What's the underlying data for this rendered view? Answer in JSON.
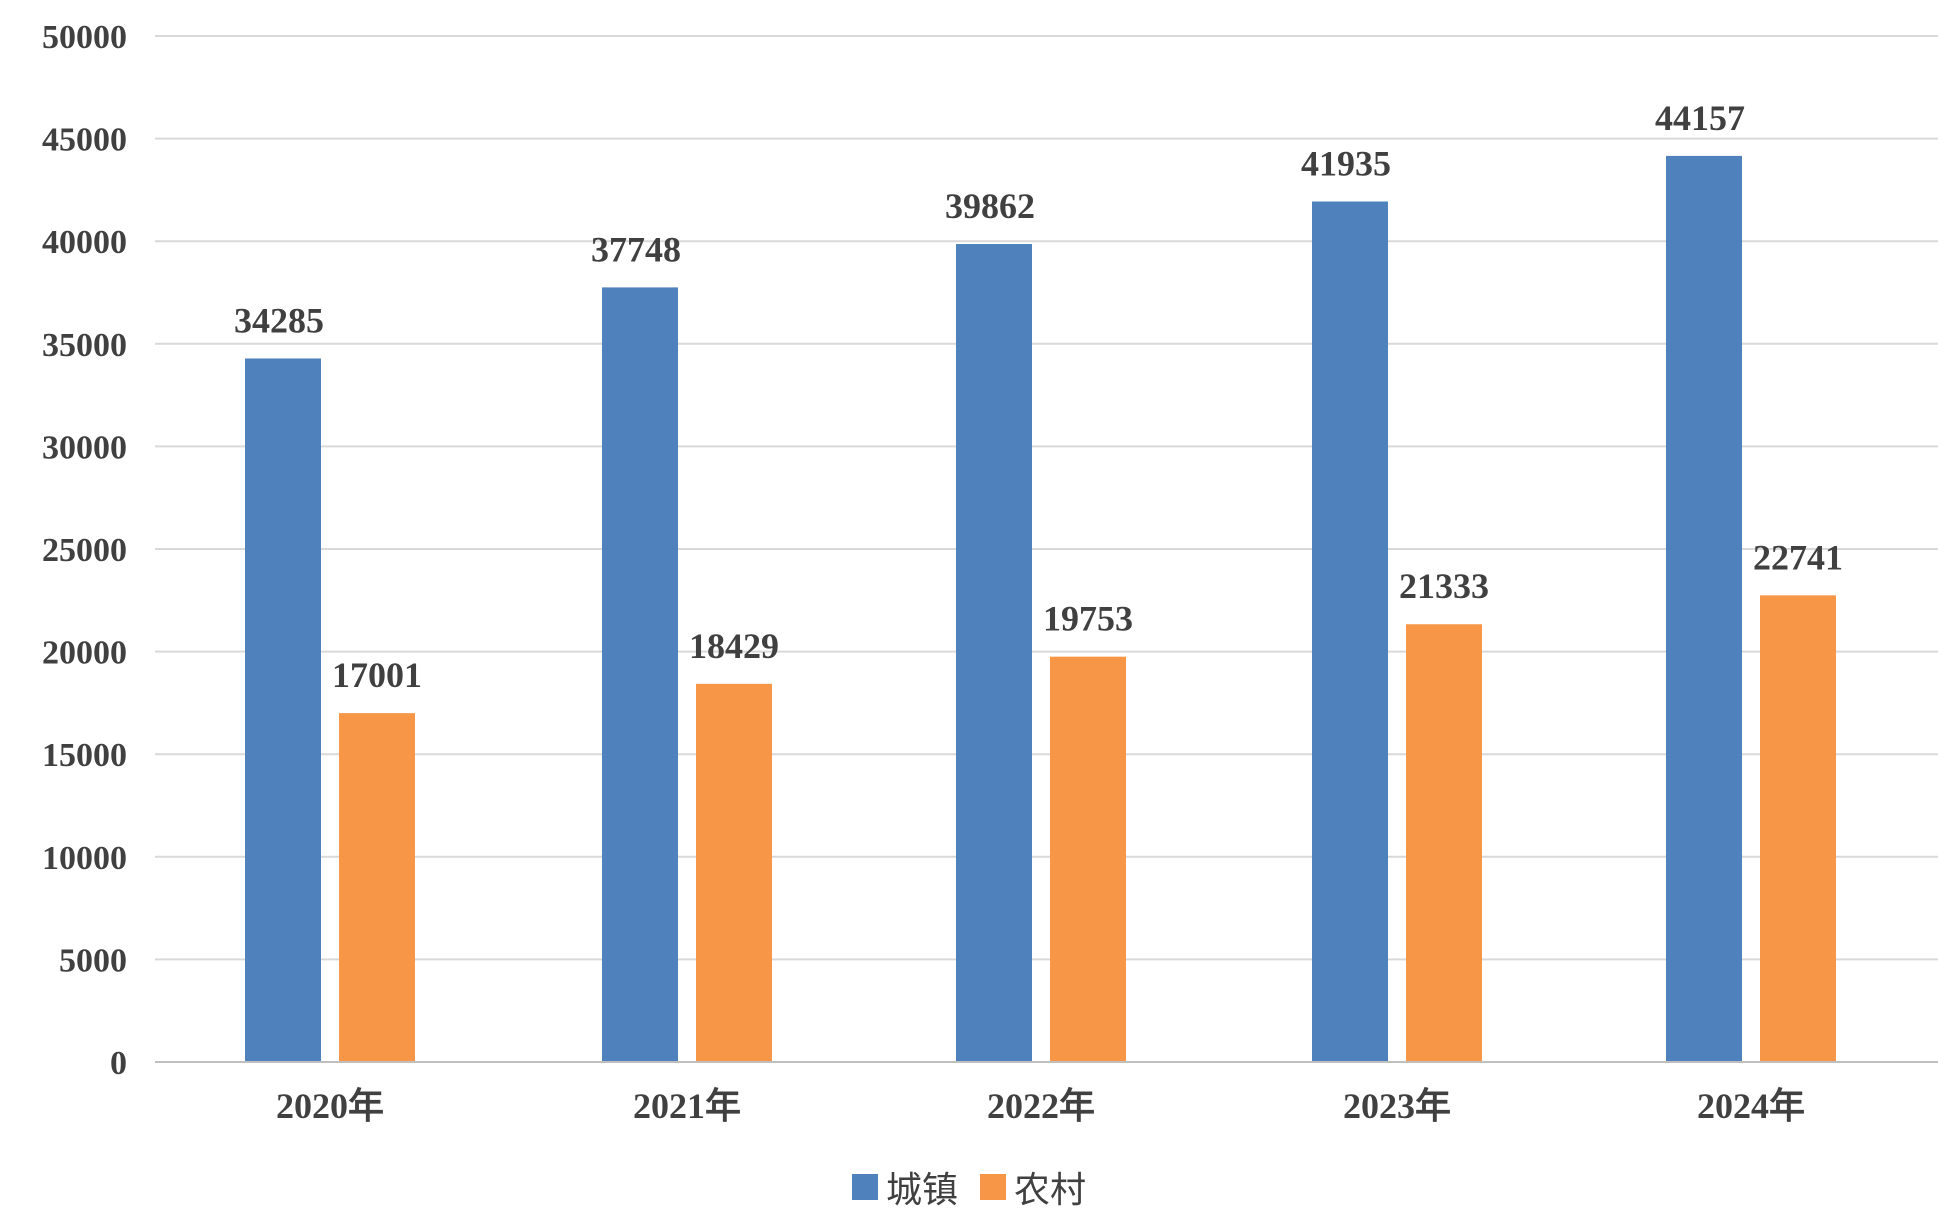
{
  "chart_data": {
    "type": "bar",
    "categories": [
      "2020年",
      "2021年",
      "2022年",
      "2023年",
      "2024年"
    ],
    "series": [
      {
        "name": "城镇",
        "values": [
          34285,
          37748,
          39862,
          41935,
          44157
        ],
        "color": "#4F81BD"
      },
      {
        "name": "农村",
        "values": [
          17001,
          18429,
          19753,
          21333,
          22741
        ],
        "color": "#F79646"
      }
    ],
    "ylim": [
      0,
      50000
    ],
    "yticks": [
      "0",
      "5000",
      "10000",
      "15000",
      "20000",
      "25000",
      "30000",
      "35000",
      "40000",
      "45000",
      "50000"
    ],
    "grid": true,
    "legend_position": "bottom",
    "gridline_color": "#D9D9D9",
    "axis_color": "#BFBFBF",
    "text_color": "#404040"
  }
}
